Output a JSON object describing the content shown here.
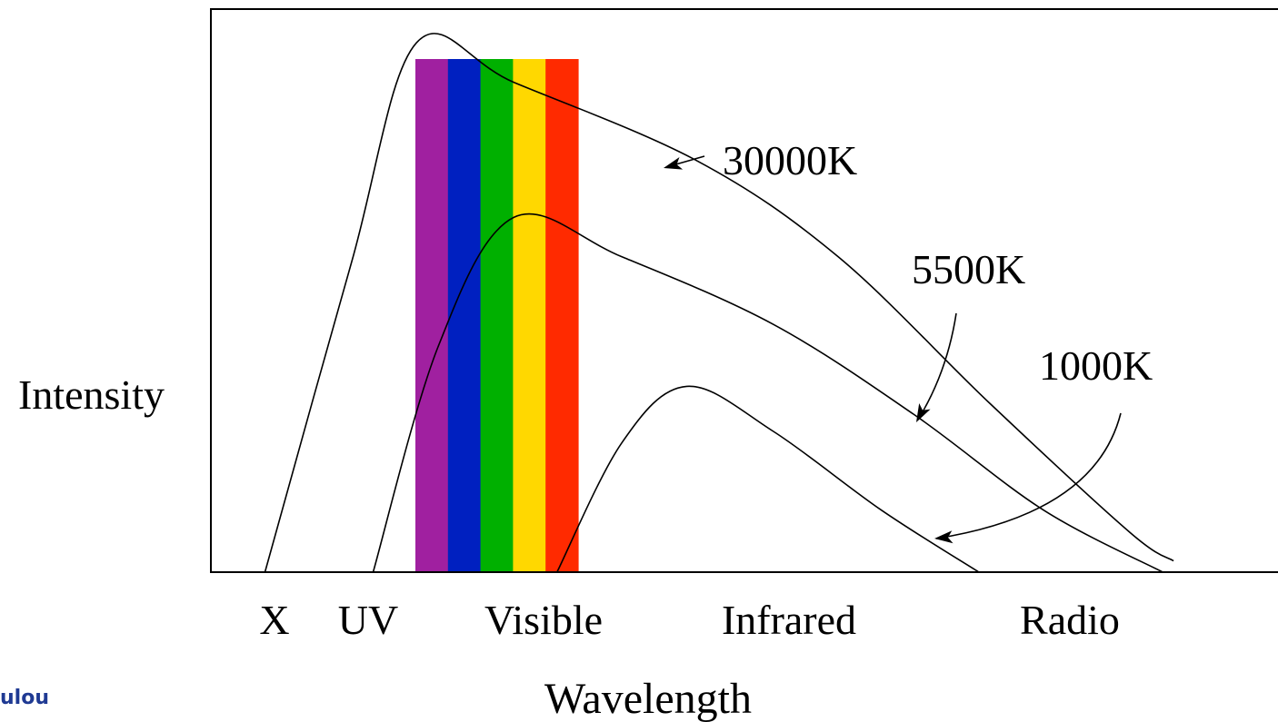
{
  "chart_data": {
    "type": "line",
    "title": "",
    "xlabel": "Wavelength",
    "ylabel": "Intensity",
    "x_categories": [
      "X",
      "UV",
      "Visible",
      "Infrared",
      "Radio"
    ],
    "grid": false,
    "visible_band": {
      "colors": [
        "#a020a0",
        "#0020c0",
        "#00b000",
        "#ffd800",
        "#ff2a00"
      ]
    },
    "series": [
      {
        "name": "30000K",
        "points": [
          [
            0.05,
            0.0
          ],
          [
            0.13,
            0.55
          ],
          [
            0.19,
            0.94
          ],
          [
            0.28,
            0.87
          ],
          [
            0.45,
            0.73
          ],
          [
            0.58,
            0.56
          ],
          [
            0.72,
            0.3
          ],
          [
            0.85,
            0.07
          ],
          [
            0.89,
            0.02
          ]
        ]
      },
      {
        "name": "5500K",
        "points": [
          [
            0.15,
            0.0
          ],
          [
            0.21,
            0.4
          ],
          [
            0.28,
            0.63
          ],
          [
            0.38,
            0.56
          ],
          [
            0.52,
            0.44
          ],
          [
            0.65,
            0.28
          ],
          [
            0.77,
            0.11
          ],
          [
            0.88,
            0.0
          ]
        ]
      },
      {
        "name": "1000K",
        "points": [
          [
            0.32,
            0.0
          ],
          [
            0.38,
            0.23
          ],
          [
            0.44,
            0.33
          ],
          [
            0.52,
            0.25
          ],
          [
            0.62,
            0.11
          ],
          [
            0.71,
            0.0
          ]
        ]
      }
    ]
  },
  "corner_text": "ulou"
}
